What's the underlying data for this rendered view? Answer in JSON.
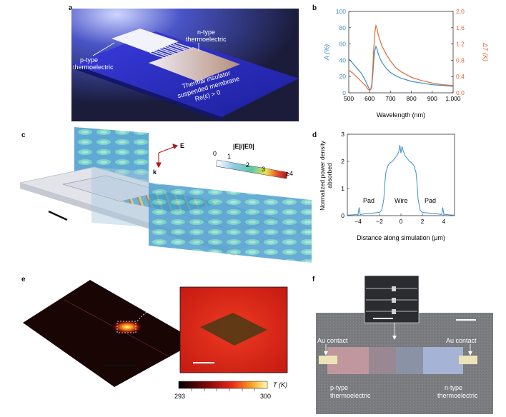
{
  "panels": {
    "a": {
      "letter": "a",
      "labels": {
        "ntype": [
          "n-type",
          "thermoelectric"
        ],
        "ptype": [
          "p-type",
          "thermoelectric"
        ],
        "membrane": [
          "Thermal insulator",
          "suspended membrane",
          "Re(ε) > 0"
        ]
      }
    },
    "b": {
      "letter": "b",
      "chart_data": {
        "type": "line",
        "xlabel": "Wavelength (nm)",
        "ylabel_left": "A (%)",
        "ylabel_right": "ΔT (K)",
        "xlim": [
          500,
          1000
        ],
        "ylim_left": [
          0,
          100
        ],
        "ylim_right": [
          0,
          2.0
        ],
        "x_ticks": [
          "500",
          "600",
          "700",
          "800",
          "900",
          "1,000"
        ],
        "y_ticks_left": [
          "0",
          "20",
          "40",
          "60",
          "80",
          "100"
        ],
        "y_ticks_right": [
          "0.0",
          "0.4",
          "0.8",
          "1.2",
          "1.6",
          "2.0"
        ],
        "colors": {
          "A": "#3b8fc4",
          "dT": "#e06a35"
        },
        "series": [
          {
            "axis": "left",
            "x": [
              500,
              520,
              540,
              560,
              580,
              590,
              600,
              605,
              610,
              615,
              620,
              625,
              630,
              635,
              640,
              650,
              660,
              680,
              700,
              725,
              750,
              800,
              850,
              900,
              950,
              1000
            ],
            "values": [
              42,
              36,
              30,
              24,
              15,
              9,
              4,
              4,
              7,
              22,
              40,
              52,
              57,
              54,
              49,
              42,
              37,
              30,
              25,
              21,
              18,
              14,
              12,
              10,
              9,
              8
            ]
          },
          {
            "axis": "right",
            "x": [
              500,
              520,
              540,
              560,
              580,
              590,
              600,
              605,
              610,
              615,
              620,
              625,
              630,
              635,
              640,
              650,
              660,
              680,
              700,
              725,
              750,
              800,
              850,
              900,
              950,
              1000
            ],
            "values": [
              0.56,
              0.48,
              0.38,
              0.28,
              0.18,
              0.1,
              0.06,
              0.08,
              0.2,
              0.6,
              1.1,
              1.48,
              1.65,
              1.6,
              1.45,
              1.28,
              1.14,
              0.94,
              0.78,
              0.62,
              0.52,
              0.38,
              0.3,
              0.24,
              0.2,
              0.18
            ]
          }
        ]
      }
    },
    "c": {
      "letter": "c",
      "scale_label": "|E|/|E0|",
      "scale_ticks": [
        "0",
        "1",
        "2",
        "3",
        "≥4"
      ],
      "vector_labels": {
        "E": "E",
        "k": "k"
      }
    },
    "d": {
      "letter": "d",
      "chart_data": {
        "type": "line",
        "xlabel": "Distance along simulation (μm)",
        "ylabel": [
          "Normalized power density",
          "absorbed"
        ],
        "xlim": [
          -5,
          5
        ],
        "ylim": [
          0,
          3
        ],
        "x_ticks": [
          "−4",
          "−2",
          "0",
          "2",
          "4"
        ],
        "y_ticks": [
          "0",
          "1",
          "2",
          "3"
        ],
        "annotations": [
          "Pad",
          "Wire",
          "Pad"
        ],
        "color": "#3b8fc4",
        "series": [
          {
            "x": [
              -5,
              -4.5,
              -4,
              -3.9,
              -3.8,
              -3.5,
              -3,
              -2.5,
              -2,
              -1.8,
              -1.6,
              -1.5,
              -1.4,
              -1.2,
              -1,
              -0.8,
              -0.6,
              -0.4,
              -0.2,
              -0.1,
              0,
              0.1,
              0.2,
              0.4,
              0.6,
              0.8,
              1,
              1.2,
              1.4,
              1.5,
              1.6,
              1.8,
              2,
              2.5,
              3,
              3.5,
              3.8,
              3.9,
              4,
              4.5,
              5
            ],
            "values": [
              0.02,
              0.03,
              0.05,
              0.3,
              0.04,
              0.06,
              0.08,
              0.1,
              0.12,
              0.2,
              0.6,
              1.2,
              1.6,
              1.85,
              1.95,
              2.0,
              2.1,
              2.2,
              2.35,
              2.6,
              2.3,
              2.55,
              2.4,
              2.2,
              2.1,
              2.0,
              1.95,
              1.85,
              1.6,
              1.2,
              0.6,
              0.2,
              0.12,
              0.1,
              0.08,
              0.06,
              0.04,
              0.3,
              0.05,
              0.03,
              0.02
            ]
          }
        ]
      }
    },
    "e": {
      "letter": "e",
      "colorbar": {
        "label": "T (K)",
        "min": "293",
        "max": "300"
      }
    },
    "f": {
      "letter": "f",
      "labels": {
        "au_left": "Au contact",
        "au_right": "Au contact",
        "ptype": [
          "p-type",
          "thermoelectric"
        ],
        "ntype": [
          "n-type",
          "thermoelectric"
        ]
      }
    }
  }
}
